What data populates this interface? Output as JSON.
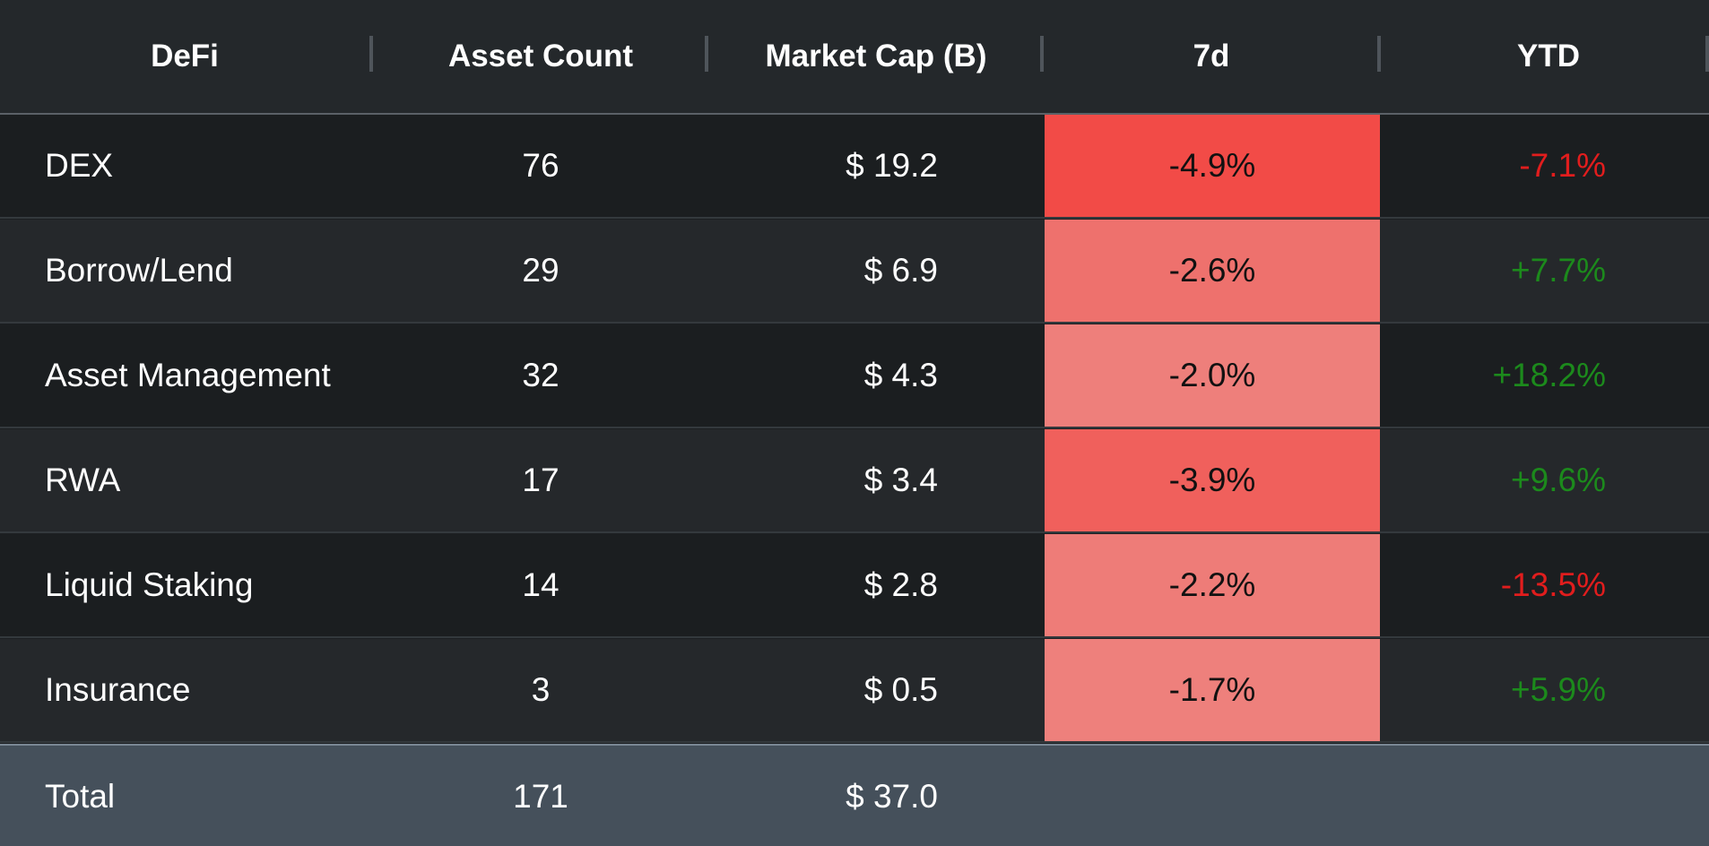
{
  "colors": {
    "negative": "#e11d1d",
    "positive": "#1c8a1c"
  },
  "columns": [
    {
      "label": "DeFi"
    },
    {
      "label": "Asset Count"
    },
    {
      "label": "Market Cap (B)"
    },
    {
      "label": "7d"
    },
    {
      "label": "YTD"
    }
  ],
  "rows": [
    {
      "name": "DEX",
      "count": "76",
      "cap": "$ 19.2",
      "d7": "-4.9%",
      "d7_bg": "#f24b47",
      "ytd": "-7.1%",
      "ytd_color": "#e11d1d"
    },
    {
      "name": "Borrow/Lend",
      "count": "29",
      "cap": "$ 6.9",
      "d7": "-2.6%",
      "d7_bg": "#ee716d",
      "ytd": "+7.7%",
      "ytd_color": "#1c8a1c"
    },
    {
      "name": "Asset Management",
      "count": "32",
      "cap": "$ 4.3",
      "d7": "-2.0%",
      "d7_bg": "#ee7f7b",
      "ytd": "+18.2%",
      "ytd_color": "#1c8a1c"
    },
    {
      "name": "RWA",
      "count": "17",
      "cap": "$ 3.4",
      "d7": "-3.9%",
      "d7_bg": "#f0605c",
      "ytd": "+9.6%",
      "ytd_color": "#1c8a1c"
    },
    {
      "name": "Liquid Staking",
      "count": "14",
      "cap": "$ 2.8",
      "d7": "-2.2%",
      "d7_bg": "#ee7c78",
      "ytd": "-13.5%",
      "ytd_color": "#e11d1d"
    },
    {
      "name": "Insurance",
      "count": "3",
      "cap": "$ 0.5",
      "d7": "-1.7%",
      "d7_bg": "#ee807c",
      "ytd": "+5.9%",
      "ytd_color": "#1c8a1c"
    }
  ],
  "total": {
    "name": "Total",
    "count": "171",
    "cap": "$ 37.0"
  }
}
